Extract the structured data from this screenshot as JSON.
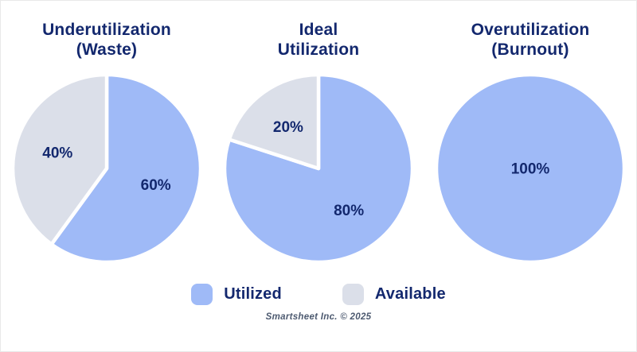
{
  "colors": {
    "utilized": "#9fbaf7",
    "available": "#dbdfe9",
    "label_navy": "#13286e",
    "slice_gap": "#ffffff",
    "footer_text": "#4d5a70"
  },
  "chart_data": [
    {
      "type": "pie",
      "title": "Underutilization (Waste)",
      "title_lines": [
        "Underutilization",
        "(Waste)"
      ],
      "start_angle_deg": 0,
      "direction": "clockwise",
      "slices": [
        {
          "label": "Utilized",
          "value": 60,
          "display": "60%",
          "color_key": "utilized"
        },
        {
          "label": "Available",
          "value": 40,
          "display": "40%",
          "color_key": "available"
        }
      ]
    },
    {
      "type": "pie",
      "title": "Ideal Utilization",
      "title_lines": [
        "Ideal",
        "Utilization"
      ],
      "start_angle_deg": 0,
      "direction": "clockwise",
      "slices": [
        {
          "label": "Utilized",
          "value": 80,
          "display": "80%",
          "color_key": "utilized"
        },
        {
          "label": "Available",
          "value": 20,
          "display": "20%",
          "color_key": "available"
        }
      ]
    },
    {
      "type": "pie",
      "title": "Overutilization (Burnout)",
      "title_lines": [
        "Overutilization",
        "(Burnout)"
      ],
      "start_angle_deg": 0,
      "direction": "clockwise",
      "slices": [
        {
          "label": "Utilized",
          "value": 100,
          "display": "100%",
          "color_key": "utilized"
        },
        {
          "label": "Available",
          "value": 0,
          "display": "",
          "color_key": "available"
        }
      ]
    }
  ],
  "legend": {
    "items": [
      {
        "label": "Utilized",
        "color_key": "utilized"
      },
      {
        "label": "Available",
        "color_key": "available"
      }
    ]
  },
  "footer": {
    "credit": "Smartsheet Inc. © 2025"
  }
}
